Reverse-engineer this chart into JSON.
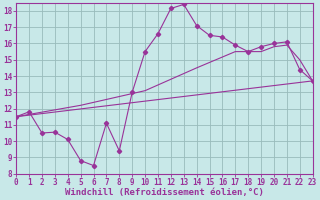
{
  "bg_color": "#c8e8e8",
  "grid_color": "#99bbbb",
  "line_color": "#993399",
  "xlabel": "Windchill (Refroidissement éolien,°C)",
  "xlim": [
    0,
    23
  ],
  "ylim": [
    8,
    18.5
  ],
  "yticks": [
    8,
    9,
    10,
    11,
    12,
    13,
    14,
    15,
    16,
    17,
    18
  ],
  "xticks": [
    0,
    1,
    2,
    3,
    4,
    5,
    6,
    7,
    8,
    9,
    10,
    11,
    12,
    13,
    14,
    15,
    16,
    17,
    18,
    19,
    20,
    21,
    22,
    23
  ],
  "line1_x": [
    0,
    1,
    2,
    3,
    4,
    5,
    6,
    7,
    8,
    9,
    10,
    11,
    12,
    13,
    14,
    15,
    16,
    17,
    18,
    19,
    20,
    21,
    22,
    23
  ],
  "line1_y": [
    11.5,
    11.8,
    10.5,
    10.55,
    10.1,
    8.8,
    8.5,
    11.1,
    9.4,
    13.0,
    15.5,
    16.6,
    18.15,
    18.4,
    17.1,
    16.5,
    16.4,
    15.9,
    15.5,
    15.8,
    16.0,
    16.1,
    14.4,
    13.7
  ],
  "line1_marker_x": [
    0,
    1,
    2,
    3,
    4,
    5,
    6,
    7,
    8,
    9,
    10,
    11,
    12,
    13,
    14,
    15,
    16,
    17,
    18,
    19,
    20,
    21,
    22,
    23
  ],
  "line2_x": [
    0,
    23
  ],
  "line2_y": [
    11.5,
    13.7
  ],
  "line3_x": [
    0,
    5,
    10,
    14,
    17,
    19,
    20,
    21,
    22,
    23
  ],
  "line3_y": [
    11.5,
    12.2,
    13.1,
    14.5,
    15.5,
    15.5,
    15.8,
    15.9,
    15.0,
    13.7
  ],
  "font_size": 6.5,
  "tick_font_size": 5.5
}
